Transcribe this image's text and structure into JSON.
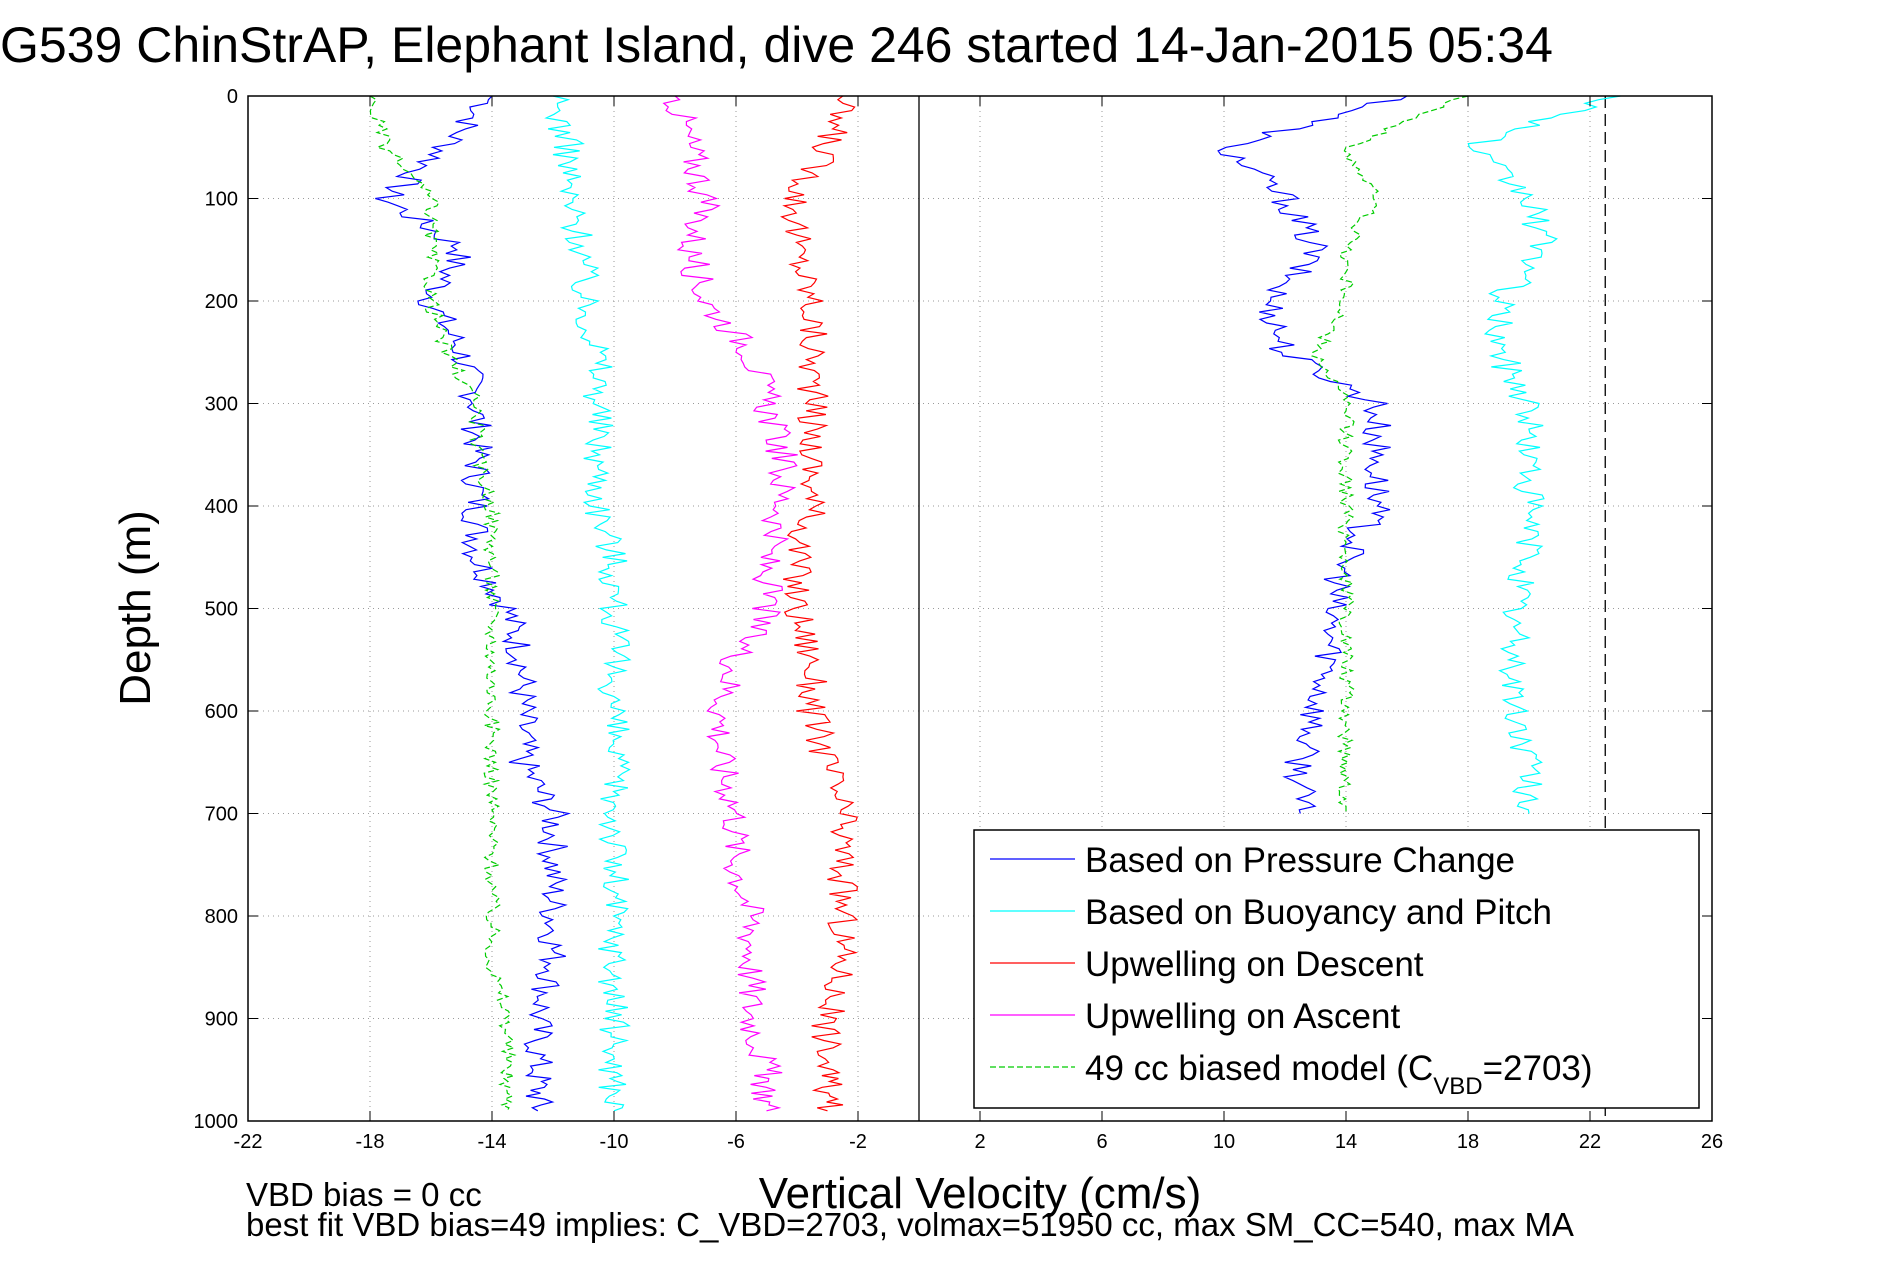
{
  "chart_data": {
    "type": "line",
    "title": "G539 ChinStrAP, Elephant Island, dive 246 started 14-Jan-2015 05:34",
    "xlabel": "Vertical Velocity (cm/s)",
    "ylabel": "Depth (m)",
    "xlim": [
      -22,
      26
    ],
    "ylim": [
      0,
      1000
    ],
    "y_reversed": true,
    "grid": true,
    "xticks": [
      "-22",
      "-18",
      "-14",
      "-10",
      "-6",
      "-2",
      "2",
      "6",
      "10",
      "14",
      "18",
      "22",
      "26"
    ],
    "yticks": [
      "0",
      "100",
      "200",
      "300",
      "400",
      "500",
      "600",
      "700",
      "800",
      "900",
      "1000"
    ],
    "legend_position": "bottom-right",
    "depths": [
      0,
      50,
      100,
      150,
      200,
      250,
      300,
      350,
      400,
      450,
      500,
      550,
      600,
      650,
      700,
      750,
      800,
      850,
      900,
      950,
      990
    ],
    "series": [
      {
        "name": "Based on Pressure Change",
        "color": "#0000ff",
        "style": "solid",
        "profile": "descent",
        "values": [
          -14,
          -15.5,
          -17.5,
          -15,
          -16,
          -15,
          -14.5,
          -14.5,
          -14.5,
          -14.5,
          -13.5,
          -13,
          -13,
          -13,
          -12,
          -12,
          -12,
          -12,
          -12.5,
          -12.5,
          -12.5
        ]
      },
      {
        "name": "Based on Pressure Change",
        "color": "#0000ff",
        "style": "solid",
        "profile": "ascent",
        "values": [
          16,
          10,
          12,
          13,
          11.5,
          12,
          15,
          15,
          15,
          14,
          13.5,
          13.5,
          13,
          12.5,
          12.5,
          null,
          null,
          null,
          null,
          null,
          null
        ]
      },
      {
        "name": "Based on Buoyancy and Pitch",
        "color": "#00ffff",
        "style": "solid",
        "profile": "descent",
        "values": [
          -12,
          -11.5,
          -11.5,
          -11,
          -11,
          -10.5,
          -10.5,
          -10.5,
          -10.5,
          -10,
          -10,
          -10,
          -10,
          -10,
          -10,
          -10,
          -10,
          -10,
          -10,
          -10,
          -10
        ]
      },
      {
        "name": "Based on Buoyancy and Pitch",
        "color": "#00ffff",
        "style": "solid",
        "profile": "ascent",
        "values": [
          23,
          18,
          20,
          20.5,
          19,
          19,
          20,
          20,
          20,
          20,
          19.5,
          19.5,
          19.5,
          20,
          20,
          null,
          null,
          null,
          null,
          null,
          null
        ]
      },
      {
        "name": "Upwelling on Descent",
        "color": "#ff0000",
        "style": "solid",
        "values": [
          -2.5,
          -3,
          -4,
          -4,
          -3.5,
          -3.5,
          -3.5,
          -3.5,
          -3.5,
          -4,
          -4,
          -3.5,
          -3.5,
          -3,
          -2.5,
          -2.5,
          -2.5,
          -2.5,
          -3,
          -3,
          -3
        ]
      },
      {
        "name": "Upwelling on Ascent",
        "color": "#ff00ff",
        "style": "solid",
        "values": [
          -8,
          -7.5,
          -7,
          -7.5,
          -7,
          -5.5,
          -5,
          -4.5,
          -4.5,
          -5,
          -5,
          -6,
          -6.5,
          -6.5,
          -6,
          -6,
          -5.5,
          -5.5,
          -5.5,
          -5,
          -5
        ]
      },
      {
        "name": "49 cc biased model (C_VBD=2703)",
        "color": "#00cc00",
        "style": "dashed",
        "profile": "descent",
        "values": [
          -18,
          -17.5,
          -16,
          -16,
          -16,
          -15.5,
          -14.5,
          -14.5,
          -14,
          -14,
          -14,
          -14,
          -14,
          -14,
          -14,
          -14,
          -14,
          -14,
          -13.5,
          -13.5,
          -13.5
        ]
      },
      {
        "name": "49 cc biased model (C_VBD=2703)",
        "color": "#00cc00",
        "style": "dashed",
        "profile": "ascent",
        "values": [
          18,
          14,
          15,
          14,
          14,
          13,
          14,
          14,
          14,
          14,
          14,
          14,
          14,
          14,
          14,
          null,
          null,
          null,
          null,
          null,
          null
        ]
      }
    ],
    "reference_lines": [
      {
        "x": 0,
        "style": "solid",
        "color": "#000000"
      },
      {
        "x": 22.5,
        "style": "dashed",
        "color": "#000000"
      }
    ],
    "legend": [
      {
        "label": "Based on Pressure Change",
        "color": "#0000ff",
        "style": "solid"
      },
      {
        "label": "Based on Buoyancy and Pitch",
        "color": "#00ffff",
        "style": "solid"
      },
      {
        "label": "Upwelling on Descent",
        "color": "#ff0000",
        "style": "solid"
      },
      {
        "label": "Upwelling on Ascent",
        "color": "#ff00ff",
        "style": "solid"
      },
      {
        "label": "49 cc biased model (C",
        "sub": "VBD",
        "suffix": "=2703)",
        "color": "#00cc00",
        "style": "dashed"
      }
    ]
  },
  "notes": {
    "line1": "VBD bias = 0 cc",
    "line2": "best fit VBD bias=49 implies: C_VBD=2703, volmax=51950 cc, max SM_CC=540, max MA"
  }
}
